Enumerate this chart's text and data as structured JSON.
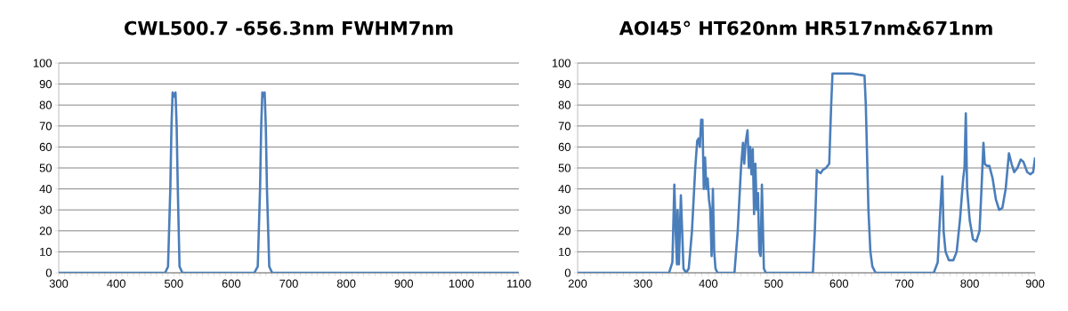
{
  "chart_data": [
    {
      "type": "line",
      "title": "CWL500.7 -656.3nm  FWHM7nm",
      "xlim": [
        300,
        1100
      ],
      "xticks": [
        300,
        400,
        500,
        600,
        700,
        800,
        900,
        1000,
        1100
      ],
      "ylim": [
        0,
        100
      ],
      "yticks": [
        0,
        10,
        20,
        30,
        40,
        50,
        60,
        70,
        80,
        90,
        100
      ],
      "grid": "y",
      "marker": "none",
      "line_style": "solid",
      "series": [
        {
          "color": "#4a7ebb",
          "x": [
            300,
            485,
            490,
            494,
            496,
            498,
            500.7,
            503,
            505,
            507,
            510,
            515,
            640,
            646,
            650,
            652,
            654,
            656.3,
            658,
            660,
            662,
            666,
            671,
            1100
          ],
          "values": [
            0,
            0,
            3,
            40,
            70,
            86,
            84,
            86,
            70,
            40,
            3,
            0,
            0,
            3,
            40,
            70,
            86,
            84,
            86,
            70,
            40,
            3,
            0,
            0
          ]
        }
      ]
    },
    {
      "type": "line",
      "title": "AOI45° HT620nm HR517nm&671nm",
      "xlim": [
        200,
        900
      ],
      "xticks": [
        200,
        300,
        400,
        500,
        600,
        700,
        800,
        900
      ],
      "ylim": [
        0,
        100
      ],
      "yticks": [
        0,
        10,
        20,
        30,
        40,
        50,
        60,
        70,
        80,
        90,
        100
      ],
      "grid": "y",
      "marker": "none",
      "line_style": "solid",
      "series": [
        {
          "color": "#4a7ebb",
          "x": [
            200,
            340,
            345,
            348,
            350,
            352,
            353,
            355,
            358,
            362,
            366,
            370,
            375,
            380,
            383,
            385,
            387,
            389,
            391,
            393,
            395,
            397,
            399,
            401,
            403,
            405,
            407,
            409,
            411,
            414,
            440,
            445,
            450,
            453,
            455,
            457,
            460,
            462,
            464,
            466,
            468,
            470,
            472,
            474,
            476,
            478,
            480,
            482,
            485,
            488,
            490,
            560,
            563,
            566,
            569,
            572,
            575,
            580,
            585,
            588,
            590,
            600,
            620,
            639,
            641,
            643,
            645,
            648,
            651,
            656,
            745,
            751,
            755,
            758,
            760,
            763,
            768,
            775,
            780,
            785,
            790,
            792,
            794,
            796,
            800,
            805,
            810,
            815,
            818,
            821,
            823,
            826,
            830,
            835,
            840,
            845,
            850,
            855,
            860,
            864,
            868,
            873,
            878,
            882,
            888,
            893,
            897,
            900
          ],
          "values": [
            0,
            0,
            5,
            42,
            20,
            4,
            30,
            4,
            37,
            2,
            0,
            2,
            20,
            50,
            63,
            64,
            60,
            73,
            73,
            40,
            55,
            40,
            45,
            35,
            30,
            8,
            40,
            10,
            2,
            0,
            0,
            20,
            50,
            62,
            52,
            62,
            68,
            50,
            60,
            47,
            59,
            28,
            52,
            30,
            38,
            10,
            8,
            42,
            2,
            0,
            0,
            0,
            20,
            49,
            48,
            47.5,
            49,
            50,
            52,
            80,
            95,
            95,
            95,
            94,
            80,
            55,
            30,
            10,
            3,
            0,
            0,
            5,
            30,
            46,
            20,
            10,
            6,
            6,
            10,
            25,
            45,
            50,
            76,
            40,
            25,
            16,
            15,
            20,
            40,
            62,
            52,
            51,
            51,
            45,
            35,
            30,
            31,
            40,
            57,
            52,
            48,
            50,
            54,
            53,
            48,
            47,
            48,
            55
          ]
        }
      ]
    }
  ]
}
